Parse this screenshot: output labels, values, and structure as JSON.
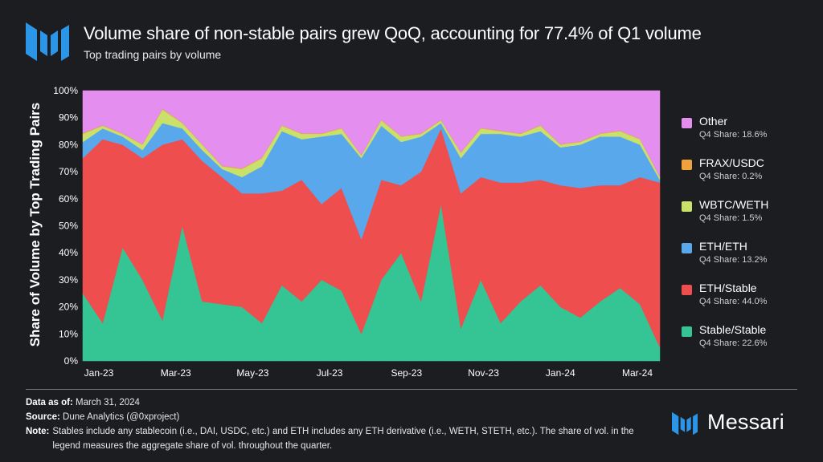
{
  "header": {
    "title": "Volume share of non-stable pairs grew QoQ, accounting for 77.4% of Q1 volume",
    "subtitle": "Top trading pairs by volume"
  },
  "colors": {
    "background": "#1b1d21",
    "brand_blue": "#2b95e8"
  },
  "footer": {
    "data_as_of_label": "Data as of:",
    "data_as_of_value": "March 31, 2024",
    "source_label": "Source:",
    "source_value": "Dune Analytics (@0xproject)",
    "note_label": "Note:",
    "note_value": "Stables include any stablecoin (i.e., DAI, USDC, etc.) and ETH includes any ETH derivative (i.e., WETH, STETH, etc.). The share of vol. in the legend measures the aggregate share of vol. throughout the quarter.",
    "brand_name": "Messari"
  },
  "legend": [
    {
      "name": "Other",
      "share": "Q4 Share: 18.6%",
      "color": "#e48ef0"
    },
    {
      "name": "FRAX/USDC",
      "share": "Q4 Share: 0.2%",
      "color": "#f0a23c"
    },
    {
      "name": "WBTC/WETH",
      "share": "Q4 Share: 1.5%",
      "color": "#c9e06a"
    },
    {
      "name": "ETH/ETH",
      "share": "Q4 Share: 13.2%",
      "color": "#5aa8ec"
    },
    {
      "name": "ETH/Stable",
      "share": "Q4 Share: 44.0%",
      "color": "#ef4e4e"
    },
    {
      "name": "Stable/Stable",
      "share": "Q4 Share: 22.6%",
      "color": "#35c493"
    }
  ],
  "chart_data": {
    "type": "area",
    "stacked": true,
    "title": "Volume share of non-stable pairs grew QoQ, accounting for 77.4% of Q1 volume",
    "subtitle": "Top trading pairs by volume",
    "ylabel": "Share of Volume by Top Trading Pairs",
    "xlabel": "",
    "ylim": [
      0,
      100
    ],
    "y_unit": "%",
    "y_ticks": [
      0,
      10,
      20,
      30,
      40,
      50,
      60,
      70,
      80,
      90,
      100
    ],
    "x_tick_labels": [
      "Jan-23",
      "Mar-23",
      "May-23",
      "Jul-23",
      "Sep-23",
      "Nov-23",
      "Jan-24",
      "Mar-24"
    ],
    "grid": false,
    "legend_position": "right",
    "x": [
      "Jan-23",
      "Jan-23",
      "Feb-23",
      "Feb-23",
      "Mar-23",
      "Mar-23",
      "Apr-23",
      "Apr-23",
      "May-23",
      "May-23",
      "Jun-23",
      "Jun-23",
      "Jul-23",
      "Jul-23",
      "Aug-23",
      "Aug-23",
      "Sep-23",
      "Sep-23",
      "Oct-23",
      "Oct-23",
      "Nov-23",
      "Nov-23",
      "Dec-23",
      "Dec-23",
      "Jan-24",
      "Jan-24",
      "Feb-24",
      "Feb-24",
      "Mar-24",
      "Mar-24"
    ],
    "series": [
      {
        "name": "Stable/Stable",
        "color": "#35c493",
        "values": [
          25,
          14,
          42,
          30,
          15,
          50,
          22,
          21,
          20,
          14,
          28,
          22,
          30,
          26,
          10,
          30,
          40,
          22,
          58,
          12,
          30,
          14,
          22,
          28,
          20,
          16,
          22,
          27,
          21,
          5
        ]
      },
      {
        "name": "ETH/Stable",
        "color": "#ef4e4e",
        "values": [
          50,
          68,
          38,
          45,
          65,
          32,
          52,
          47,
          42,
          48,
          35,
          45,
          28,
          38,
          35,
          37,
          25,
          48,
          28,
          50,
          38,
          52,
          44,
          39,
          45,
          48,
          43,
          38,
          47,
          61
        ]
      },
      {
        "name": "ETH/ETH",
        "color": "#5aa8ec",
        "values": [
          6,
          4,
          3,
          3,
          8,
          4,
          4,
          3,
          6,
          10,
          22,
          15,
          25,
          20,
          30,
          20,
          16,
          13,
          2,
          13,
          16,
          18,
          17,
          18,
          14,
          16,
          18,
          18,
          12,
          1
        ]
      },
      {
        "name": "WBTC/WETH",
        "color": "#c9e06a",
        "values": [
          3,
          1,
          1,
          2,
          5,
          2,
          2,
          1,
          3,
          3,
          2,
          2,
          1,
          2,
          1,
          2,
          2,
          1,
          1,
          2,
          2,
          1,
          1,
          2,
          1,
          1,
          1,
          2,
          2,
          1
        ]
      },
      {
        "name": "FRAX/USDC",
        "color": "#f0a23c",
        "values": [
          0.3,
          0.2,
          0.2,
          0.2,
          0.3,
          0.2,
          0.2,
          0.2,
          0.3,
          0.2,
          0.2,
          0.2,
          0.2,
          0.2,
          0.2,
          0.2,
          0.2,
          0.2,
          0.2,
          0.2,
          0.2,
          0.2,
          0.2,
          0.2,
          0.2,
          0.2,
          0.2,
          0.2,
          0.2,
          0.2
        ]
      },
      {
        "name": "Other",
        "color": "#e48ef0",
        "values": [
          15.7,
          12.8,
          15.8,
          19.8,
          6.7,
          11.8,
          19.8,
          27.8,
          28.7,
          24.8,
          12.8,
          15.8,
          15.8,
          13.8,
          23.8,
          10.8,
          16.8,
          15.8,
          10.8,
          22.8,
          13.8,
          14.8,
          15.8,
          12.8,
          19.8,
          18.8,
          15.8,
          14.8,
          17.8,
          31.8
        ]
      }
    ]
  }
}
